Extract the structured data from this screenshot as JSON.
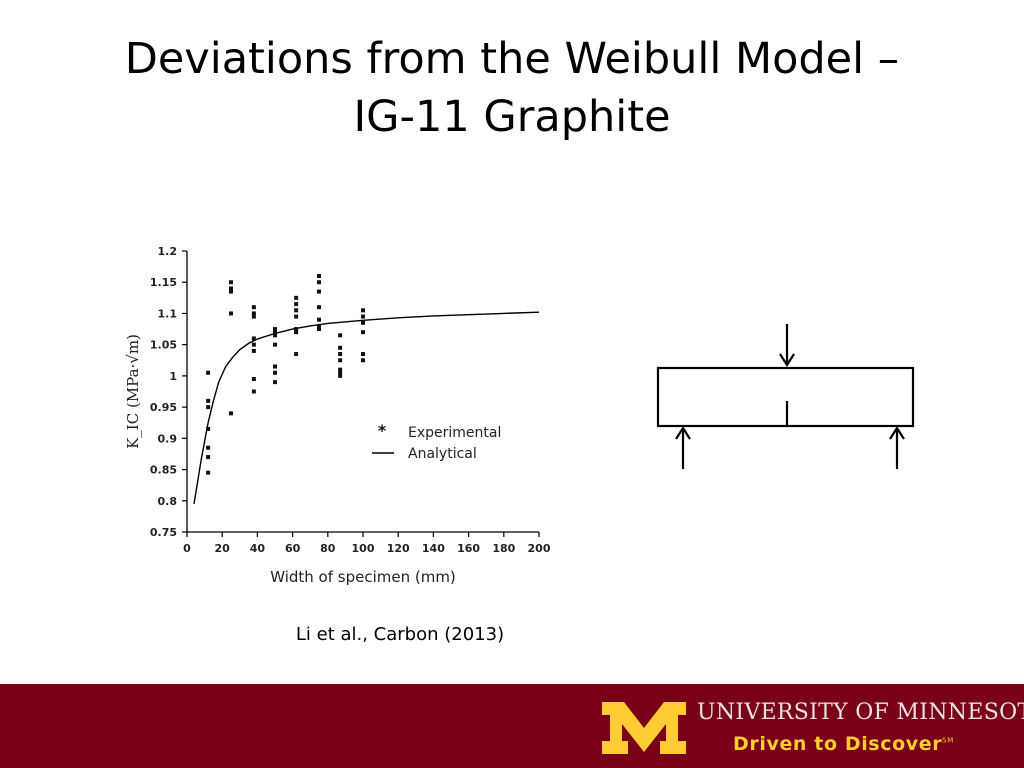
{
  "slide": {
    "title_line1": "Deviations from the Weibull Model –",
    "title_line2": "IG-11 Graphite",
    "caption": "Li et al., Carbon (2013)"
  },
  "footer": {
    "university": "UNIVERSITY OF MINNESOTA",
    "tagline": "Driven to Discover",
    "service_mark": "SM",
    "bar_color": "#7a0019",
    "gold_color": "#ffcc33"
  },
  "diagram": {
    "type": "three-point-bend-specimen",
    "icons": [
      "load-arrow-down-icon",
      "support-arrow-up-icon",
      "notch-icon"
    ]
  },
  "chart_data": {
    "type": "scatter",
    "xlabel": "Width of specimen (mm)",
    "ylabel": "K_IC (MPa·√m)",
    "xlim": [
      0,
      200
    ],
    "ylim": [
      0.75,
      1.2
    ],
    "xticks": [
      0,
      20,
      40,
      60,
      80,
      100,
      120,
      140,
      160,
      180,
      200
    ],
    "yticks": [
      0.75,
      0.8,
      0.85,
      0.9,
      0.95,
      1,
      1.05,
      1.1,
      1.15,
      1.2
    ],
    "grid": false,
    "legend": {
      "position": "center-right",
      "entries": [
        {
          "symbol": "*",
          "label": "Experimental"
        },
        {
          "symbol": "line",
          "label": "Analytical"
        }
      ]
    },
    "series": [
      {
        "name": "Experimental",
        "kind": "scatter",
        "x": [
          12,
          12,
          12,
          12,
          12,
          12,
          12,
          25,
          25,
          25,
          25,
          25,
          38,
          38,
          38,
          38,
          38,
          38,
          38,
          38,
          50,
          50,
          50,
          50,
          50,
          50,
          50,
          62,
          62,
          62,
          62,
          62,
          62,
          62,
          75,
          75,
          75,
          75,
          75,
          75,
          75,
          87,
          87,
          87,
          87,
          87,
          87,
          87,
          100,
          100,
          100,
          100,
          100,
          100
        ],
        "y": [
          1.005,
          0.96,
          0.95,
          0.915,
          0.885,
          0.87,
          0.845,
          1.15,
          1.14,
          1.135,
          1.1,
          0.94,
          1.11,
          1.1,
          1.06,
          1.05,
          1.04,
          0.995,
          0.975,
          1.095,
          1.075,
          1.065,
          1.05,
          1.015,
          1.005,
          0.99,
          1.07,
          1.125,
          1.115,
          1.105,
          1.095,
          1.075,
          1.07,
          1.035,
          1.16,
          1.15,
          1.135,
          1.11,
          1.09,
          1.08,
          1.075,
          1.065,
          1.045,
          1.035,
          1.025,
          1.01,
          1.005,
          1.0,
          1.105,
          1.095,
          1.085,
          1.07,
          1.035,
          1.025
        ]
      },
      {
        "name": "Analytical",
        "kind": "line",
        "x": [
          4,
          6,
          8,
          10,
          12,
          15,
          18,
          22,
          26,
          30,
          35,
          40,
          50,
          60,
          70,
          80,
          100,
          120,
          140,
          160,
          180,
          200
        ],
        "y": [
          0.795,
          0.83,
          0.865,
          0.895,
          0.925,
          0.96,
          0.99,
          1.015,
          1.03,
          1.042,
          1.052,
          1.059,
          1.068,
          1.075,
          1.08,
          1.084,
          1.089,
          1.093,
          1.096,
          1.098,
          1.1,
          1.102
        ]
      }
    ]
  }
}
